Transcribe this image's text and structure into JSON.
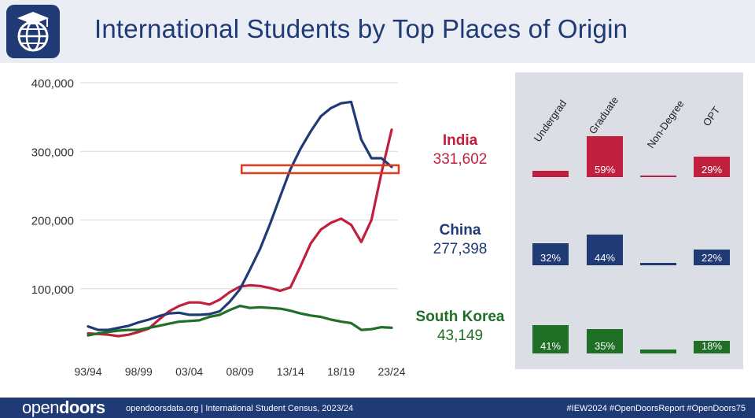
{
  "header": {
    "title": "International Students by Top Places of Origin"
  },
  "chart_data": {
    "type": "line",
    "xlabel": "",
    "ylabel": "",
    "ylim": [
      0,
      400000
    ],
    "y_ticks": [
      100000,
      200000,
      300000,
      400000
    ],
    "y_tick_labels": [
      "100,000",
      "200,000",
      "300,000",
      "400,000"
    ],
    "x_tick_labels": [
      "93/94",
      "98/99",
      "03/04",
      "08/09",
      "13/14",
      "18/19",
      "23/24"
    ],
    "x_tick_index": [
      0,
      5,
      10,
      15,
      20,
      25,
      30
    ],
    "series": [
      {
        "name": "India",
        "color": "#c0203e",
        "values": [
          35000,
          34000,
          33000,
          31000,
          33000,
          37000,
          42000,
          55000,
          67000,
          75000,
          80000,
          80000,
          77000,
          84000,
          95000,
          103000,
          105000,
          104000,
          101000,
          97000,
          102000,
          133000,
          166000,
          186000,
          196000,
          202000,
          193000,
          168000,
          200000,
          269000,
          331602
        ]
      },
      {
        "name": "China",
        "color": "#1f3a75",
        "values": [
          45000,
          40000,
          40000,
          43000,
          46000,
          51000,
          55000,
          60000,
          64000,
          65000,
          62000,
          62000,
          63000,
          67000,
          81000,
          99000,
          128000,
          158000,
          195000,
          235000,
          274000,
          304000,
          329000,
          351000,
          363000,
          370000,
          372000,
          317000,
          290000,
          290000,
          277398
        ]
      },
      {
        "name": "South Korea",
        "color": "#1f6f26",
        "values": [
          32000,
          35000,
          37000,
          39000,
          40000,
          40000,
          43000,
          46000,
          49000,
          52000,
          53000,
          54000,
          59000,
          62000,
          69000,
          75000,
          72000,
          73000,
          72000,
          71000,
          68000,
          64000,
          61000,
          59000,
          55000,
          52000,
          50000,
          40000,
          41000,
          44000,
          43149
        ]
      }
    ],
    "highlight_box": {
      "x_from_index": 13,
      "x_to_index": 30,
      "y_center": 274000
    }
  },
  "countries": [
    {
      "name": "India",
      "value": "331,602",
      "color": "#c0203e"
    },
    {
      "name": "China",
      "value": "277,398",
      "color": "#1f3a75"
    },
    {
      "name": "South Korea",
      "value": "43,149",
      "color": "#1f6f26"
    }
  ],
  "breakdown": {
    "columns": [
      "Undergrad",
      "Graduate",
      "Non-Degree",
      "OPT"
    ],
    "rows": [
      {
        "country": "India",
        "color": "#c0203e",
        "shares": [
          0.09,
          0.59,
          0.01,
          0.29
        ],
        "labels": [
          "",
          "59%",
          "",
          "29%"
        ]
      },
      {
        "country": "China",
        "color": "#1f3a75",
        "shares": [
          0.32,
          0.44,
          0.03,
          0.22
        ],
        "labels": [
          "32%",
          "44%",
          "",
          "22%"
        ]
      },
      {
        "country": "South Korea",
        "color": "#1f6f26",
        "shares": [
          0.41,
          0.35,
          0.06,
          0.18
        ],
        "labels": [
          "41%",
          "35%",
          "",
          "18%"
        ]
      }
    ]
  },
  "footer": {
    "logo_bold": "open",
    "logo_rest": "doors",
    "text": "opendoorsdata.org  |  International Student Census, 2023/24",
    "tags": "#IEW2024  #OpenDoorsReport  #OpenDoors75"
  }
}
